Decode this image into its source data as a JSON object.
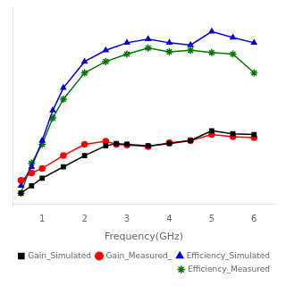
{
  "chart_data": {
    "type": "line",
    "x_label": "Frequency(GHz)",
    "series": [
      {
        "name": "Gain_Simulated",
        "color": "#000000",
        "marker": "square",
        "x": [
          0.5,
          0.75,
          1.0,
          1.5,
          2.0,
          2.5,
          2.75,
          3.0,
          3.5,
          4.0,
          4.5,
          5.0,
          5.5,
          6.0
        ],
        "values": [
          -4.5,
          -3.5,
          -2.5,
          -1.0,
          0.5,
          1.8,
          2.1,
          2.0,
          1.8,
          2.1,
          2.5,
          3.8,
          3.4,
          3.3
        ]
      },
      {
        "name": "Gain_Measured_",
        "color": "#ff0000",
        "marker": "circle",
        "x": [
          0.5,
          0.75,
          1.0,
          1.5,
          2.0,
          2.5,
          2.75,
          3.0,
          3.5,
          4.0,
          4.5,
          5.0,
          5.5,
          6.0
        ],
        "values": [
          -2.8,
          -1.8,
          -1.2,
          0.5,
          2.0,
          2.4,
          2.0,
          1.9,
          1.7,
          2.2,
          2.5,
          3.3,
          3.0,
          2.9
        ]
      },
      {
        "name": "Efficiency_Simulated",
        "color": "#0000dd",
        "marker": "triangle",
        "x": [
          0.5,
          0.75,
          1.0,
          1.25,
          1.5,
          2.0,
          2.5,
          3.0,
          3.5,
          4.0,
          4.5,
          5.0,
          5.5,
          6.0
        ],
        "values": [
          -3.5,
          -1.0,
          2.5,
          6.5,
          9.5,
          13.0,
          14.5,
          15.5,
          16.0,
          15.5,
          15.2,
          17.0,
          16.2,
          15.5
        ]
      },
      {
        "name": "Efficiency_Measured",
        "color": "#007700",
        "marker": "star",
        "x": [
          0.5,
          0.75,
          1.0,
          1.25,
          1.5,
          2.0,
          2.5,
          3.0,
          3.5,
          4.0,
          4.5,
          5.0,
          5.5,
          6.0
        ],
        "values": [
          -4.5,
          -0.5,
          2.0,
          5.5,
          8.0,
          11.5,
          13.0,
          14.0,
          14.8,
          14.3,
          14.5,
          14.2,
          14.0,
          11.5
        ]
      }
    ],
    "xlim": [
      0.3,
      6.5
    ],
    "xticks": [
      1,
      2,
      3,
      4,
      5,
      6
    ],
    "ylim": [
      -6,
      20
    ],
    "grid": false,
    "legend": "lower right",
    "tick_labels": "x"
  }
}
